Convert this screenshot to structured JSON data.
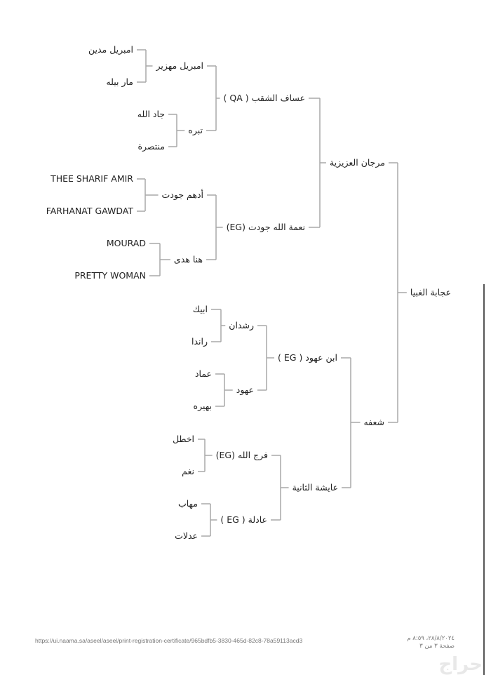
{
  "pedigree": {
    "name": "عجابة الغبيا",
    "sire": {
      "name": "مرجان العزيزية",
      "sire": {
        "name": "عساف الشقب ( QA )",
        "sire": {
          "name": "امبريل مهزير",
          "sire": {
            "name": "امبريل مدين"
          },
          "dam": {
            "name": "مار بيله"
          }
        },
        "dam": {
          "name": "تبره",
          "sire": {
            "name": "جاد الله"
          },
          "dam": {
            "name": "منتصرة"
          }
        }
      },
      "dam": {
        "name": "نعمة الله جودت (EG)",
        "sire": {
          "name": "أدهم جودت",
          "sire": {
            "name": "THEE SHARIF AMIR"
          },
          "dam": {
            "name": "FARHANAT GAWDAT"
          }
        },
        "dam": {
          "name": "هنا هدى",
          "sire": {
            "name": "MOURAD"
          },
          "dam": {
            "name": "PRETTY WOMAN"
          }
        }
      }
    },
    "dam": {
      "name": "شعفه",
      "sire": {
        "name": "ابن عهود ( EG )",
        "sire": {
          "name": "رشدان",
          "sire": {
            "name": "ابيك"
          },
          "dam": {
            "name": "راندا"
          }
        },
        "dam": {
          "name": "عهود",
          "sire": {
            "name": "عماد"
          },
          "dam": {
            "name": "بهيره"
          }
        }
      },
      "dam": {
        "name": "عايشة الثانية",
        "sire": {
          "name": "فرج الله (EG)",
          "sire": {
            "name": "اخطل"
          },
          "dam": {
            "name": "نغم"
          }
        },
        "dam": {
          "name": "عادلة ( EG )",
          "sire": {
            "name": "مهاب"
          },
          "dam": {
            "name": "عدلات"
          }
        }
      }
    }
  },
  "footer": {
    "url": "https://ui.naama.sa/aseel/aseel/print-registration-certificate/965bdfb5-3830-465d-82c8-78a59113acd3",
    "datetime": "٢٨/٨/٢٠٢٤، ٨:٥٩ م",
    "page": "صفحة ٣ من ٣"
  },
  "watermark": "حراج",
  "colors": {
    "line": "#a8a8a8",
    "text": "#222222"
  }
}
